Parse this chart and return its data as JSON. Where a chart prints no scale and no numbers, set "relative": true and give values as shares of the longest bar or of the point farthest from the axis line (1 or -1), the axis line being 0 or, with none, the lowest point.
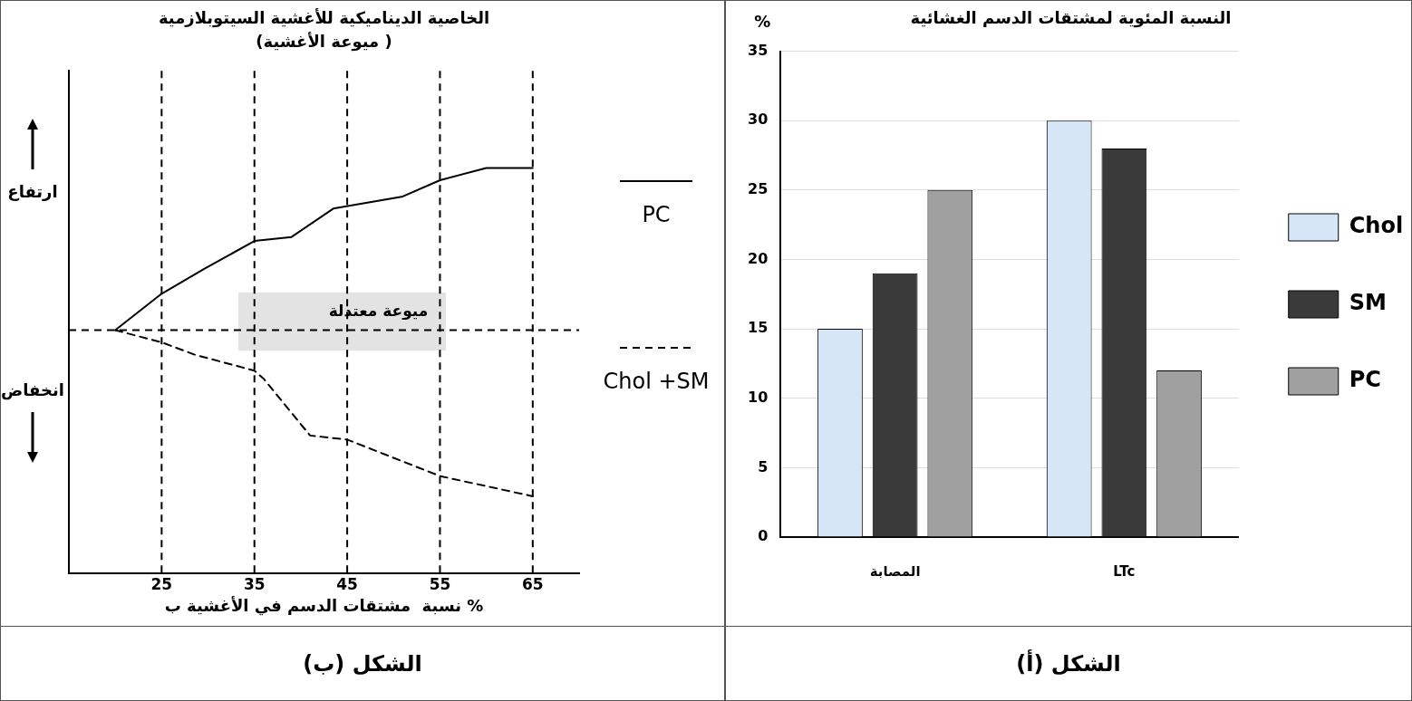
{
  "chart_data": [
    {
      "type": "line",
      "title": "الخاصية الديناميكية للأغشية السيتوبلازمية",
      "subtitle": "(ميوعة الأغشية )",
      "xlabel": "نسبة  مشتقات الدسم في الأغشية ب %",
      "relative": true,
      "xlim": [
        15,
        70
      ],
      "xticks": [
        25,
        35,
        45,
        55,
        65
      ],
      "grid": false,
      "legend": "right",
      "marker": "none",
      "series": [
        {
          "name": "PC",
          "color": "#000000",
          "line_style": "solid",
          "x": [
            20,
            25,
            29.5,
            35,
            39,
            43.5,
            51,
            55,
            60,
            65
          ],
          "values": [
            0.6,
            0.69,
            0.75,
            0.82,
            0.83,
            0.9,
            0.93,
            0.97,
            1,
            1
          ]
        },
        {
          "name": "Chol +SM",
          "color": "#000000",
          "line_style": "dashed",
          "x": [
            20,
            25,
            28.5,
            35,
            36,
            41,
            45,
            55,
            65
          ],
          "values": [
            0.6,
            0.57,
            0.54,
            0.5,
            0.48,
            0.34,
            0.33,
            0.24,
            0.19
          ]
        }
      ],
      "ref_lines": [
        {
          "axis": "y",
          "value": 0.6,
          "label": "ميوعة معتدلة",
          "line_style": "dashed"
        },
        {
          "axis": "x",
          "value": 25,
          "line_style": "dashed"
        },
        {
          "axis": "x",
          "value": 35,
          "line_style": "dashed"
        },
        {
          "axis": "x",
          "value": 45,
          "line_style": "dashed"
        },
        {
          "axis": "x",
          "value": 55,
          "line_style": "dashed"
        },
        {
          "axis": "x",
          "value": 65,
          "line_style": "dashed"
        }
      ],
      "annotations": [
        "ارتفاع",
        "انخفاض",
        "الشكل (ب)"
      ]
    },
    {
      "type": "bar",
      "title": "النسبة المئوية لمشتقات الدسم الغشائية",
      "ylabel": "%",
      "categories": [
        "المصابة",
        "LTc"
      ],
      "ylim": [
        0,
        35
      ],
      "yticks": [
        0,
        5,
        10,
        15,
        20,
        25,
        30,
        35
      ],
      "grid": "y",
      "legend": "right",
      "series": [
        {
          "name": "Chol",
          "color": "#d6e6f7",
          "values": [
            15,
            30
          ]
        },
        {
          "name": "SM",
          "color": "#3a3a3a",
          "values": [
            19,
            28
          ]
        },
        {
          "name": "PC",
          "color": "#a0a0a0",
          "values": [
            25,
            12
          ]
        }
      ],
      "annotations": [
        "الشكل (أ)"
      ]
    }
  ]
}
